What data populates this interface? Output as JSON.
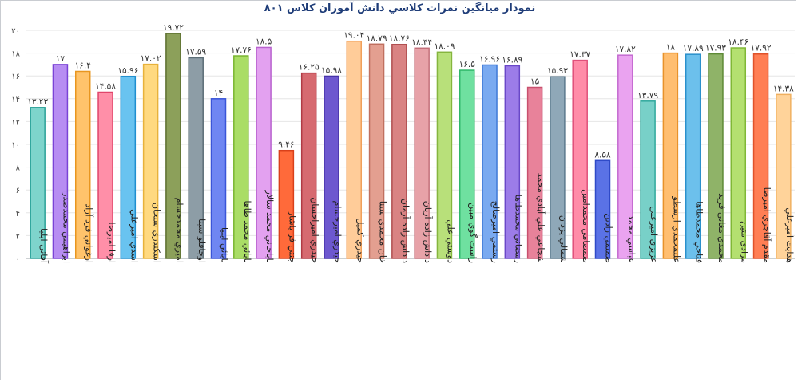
{
  "chart_data": {
    "type": "bar",
    "title": "نمودار میانگین نمرات کلاسي دانش آموزان کلاس ۸۰۱",
    "xlabel": "",
    "ylabel": "",
    "ylim": [
      0,
      20
    ],
    "y_ticks": [
      "۰",
      "۲",
      "۴",
      "۶",
      "۸",
      "۱۰",
      "۱۲",
      "۱۴",
      "۱۶",
      "۱۸",
      "۲۰"
    ],
    "grid": true,
    "legend": "none",
    "categories": [
      "آقائی ایلیا",
      "ابراهیمي محمدصدرا",
      "ارغواني فرد آراد",
      "ارقا امیرضا",
      "اسدي امیرعلي",
      "اسکندري سبحان",
      "امیري محمدحسام",
      "اوجاقلو سینا",
      "بابائي ایلیا",
      "بابائي محمد طاها",
      "باباخاني محمد سالار",
      "جنتي فر یاشار",
      "حیدري امیراحسان",
      "حیدري امیرحسام",
      "حیدري کمیل",
      "خان محمدي سینا",
      "داداش زاده آرمان",
      "داداش زاده آریان",
      "دوستي علي",
      "راست گوي مبین",
      "رستمي امیرصالح",
      "رمضاني محمدطاها",
      "شجاعي علي آبادي محمد",
      "شمالي یزدان",
      "صمصامي محمدامین",
      "صمیمي رادین",
      "عباسي محمد",
      "عزیزي امیرعلي",
      "علیمحمدي ارسطو",
      "فتاحي محمدطاها",
      "محمدي مغاني فرید",
      "مرادي متین",
      "مقدم آقاجري امیرضا",
      "هدایت امیرعلي"
    ],
    "values": [
      13.23,
      17,
      16.4,
      14.58,
      15.96,
      17.02,
      19.72,
      17.59,
      14,
      17.76,
      18.5,
      9.46,
      16.25,
      15.98,
      19.04,
      18.79,
      18.76,
      18.44,
      18.09,
      16.5,
      16.96,
      16.89,
      15,
      15.93,
      17.37,
      8.58,
      17.82,
      13.79,
      18,
      17.89,
      17.93,
      18.46,
      17.92,
      14.38
    ],
    "value_labels": [
      "۱۳.۲۳",
      "۱۷",
      "۱۶.۴",
      "۱۴.۵۸",
      "۱۵.۹۶",
      "۱۷.۰۲",
      "۱۹.۷۲",
      "۱۷.۵۹",
      "۱۴",
      "۱۷.۷۶",
      "۱۸.۵",
      "۹.۴۶",
      "۱۶.۲۵",
      "۱۵.۹۸",
      "۱۹.۰۴",
      "۱۸.۷۹",
      "۱۸.۷۶",
      "۱۸.۴۴",
      "۱۸.۰۹",
      "۱۶.۵",
      "۱۶.۹۶",
      "۱۶.۸۹",
      "۱۵",
      "۱۵.۹۳",
      "۱۷.۳۷",
      "۸.۵۸",
      "۱۷.۸۲",
      "۱۳.۷۹",
      "۱۸",
      "۱۷.۸۹",
      "۱۷.۹۳",
      "۱۸.۴۶",
      "۱۷.۹۲",
      "۱۴.۳۸"
    ],
    "colors": [
      {
        "fill": "#7ed4cc",
        "stroke": "#2aa198"
      },
      {
        "fill": "#b78df2",
        "stroke": "#7a43d6"
      },
      {
        "fill": "#ffc36b",
        "stroke": "#e8961f"
      },
      {
        "fill": "#ff8fa8",
        "stroke": "#e0456b"
      },
      {
        "fill": "#69c3f0",
        "stroke": "#1f8fcf"
      },
      {
        "fill": "#ffd980",
        "stroke": "#e8b23a"
      },
      {
        "fill": "#8ca05a",
        "stroke": "#5d7030"
      },
      {
        "fill": "#8d9da6",
        "stroke": "#5b6d76"
      },
      {
        "fill": "#6f86f2",
        "stroke": "#3a55d8"
      },
      {
        "fill": "#aadd66",
        "stroke": "#7ab530"
      },
      {
        "fill": "#e3a1f0",
        "stroke": "#b862cf"
      },
      {
        "fill": "#ff6a3a",
        "stroke": "#d9401a"
      },
      {
        "fill": "#d66a70",
        "stroke": "#b03a44"
      },
      {
        "fill": "#6d58cf",
        "stroke": "#4532a8"
      },
      {
        "fill": "#ffcc99",
        "stroke": "#f0a05a"
      },
      {
        "fill": "#e39f90",
        "stroke": "#c0705f"
      },
      {
        "fill": "#d98383",
        "stroke": "#b04f50"
      },
      {
        "fill": "#e7a2a8",
        "stroke": "#c4707a"
      },
      {
        "fill": "#b8e07a",
        "stroke": "#85b53e"
      },
      {
        "fill": "#6fe0a0",
        "stroke": "#2fb86a"
      },
      {
        "fill": "#7aaaf0",
        "stroke": "#3d78d6"
      },
      {
        "fill": "#9c7ce8",
        "stroke": "#6a48c8"
      },
      {
        "fill": "#e8829a",
        "stroke": "#c8506e"
      },
      {
        "fill": "#8fa8b8",
        "stroke": "#5c7a8e"
      },
      {
        "fill": "#ff8ca8",
        "stroke": "#e0507a"
      },
      {
        "fill": "#5a72e6",
        "stroke": "#2f4ac8"
      },
      {
        "fill": "#eaa3f0",
        "stroke": "#c46ad0"
      },
      {
        "fill": "#78d0c8",
        "stroke": "#2fa89c"
      },
      {
        "fill": "#ffbe70",
        "stroke": "#e8922a"
      },
      {
        "fill": "#6cc0ec",
        "stroke": "#2a90cc"
      },
      {
        "fill": "#8fb368",
        "stroke": "#5e8a36"
      },
      {
        "fill": "#b4e070",
        "stroke": "#80b836"
      },
      {
        "fill": "#ff7e54",
        "stroke": "#e0522a"
      },
      {
        "fill": "#ffd39a",
        "stroke": "#f0b060"
      }
    ]
  }
}
